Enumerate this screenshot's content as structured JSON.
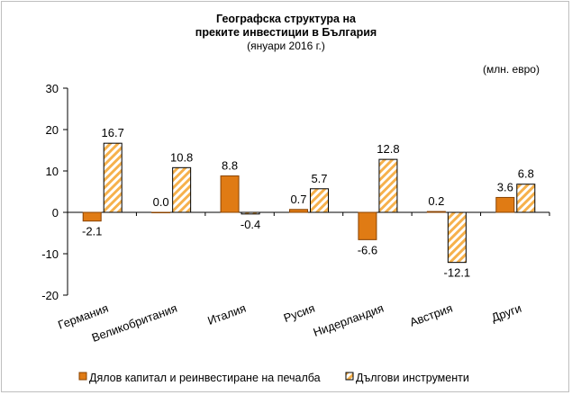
{
  "title_lines": [
    "Географска структура на",
    "преките инвестиции в България"
  ],
  "subtitle": "(януари 2016 г.)",
  "unit": "(млн. евро)",
  "colors": {
    "equity": "#e07b14",
    "equity_stroke": "#8a4300",
    "debt_hatch": "#f6b14c"
  },
  "chart_data": {
    "type": "bar",
    "title": "Географска структура на преките инвестиции в България",
    "subtitle": "(януари 2016 г.)",
    "ylabel": "(млн. евро)",
    "ylim": [
      -20,
      30
    ],
    "yticks": [
      30,
      20,
      10,
      0,
      -10,
      -20
    ],
    "grid": false,
    "legend_position": "bottom",
    "categories": [
      "Германия",
      "Великобритания",
      "Италия",
      "Русия",
      "Нидерландия",
      "Австрия",
      "Други"
    ],
    "series": [
      {
        "name": "Дялов капитал и реинвестиране на печалба",
        "values": [
          -2.1,
          0.0,
          8.8,
          0.7,
          -6.6,
          0.2,
          3.6
        ],
        "labels": [
          "-2.1",
          "0.0",
          "8.8",
          "0.7",
          "-6.6",
          "0.2",
          "3.6"
        ]
      },
      {
        "name": "Дългови инструменти",
        "values": [
          16.7,
          10.8,
          -0.4,
          5.7,
          12.8,
          -12.1,
          6.8
        ],
        "labels": [
          "16.7",
          "10.8",
          "-0.4",
          "5.7",
          "12.8",
          "-12.1",
          "6.8"
        ]
      }
    ]
  }
}
